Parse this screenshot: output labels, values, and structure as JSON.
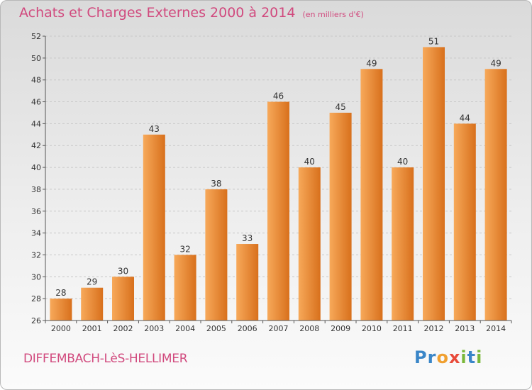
{
  "title": "Achats et Charges Externes 2000 à 2014",
  "unit": "(en milliers d'€)",
  "commune": "DIFFEMBACH-LèS-HELLIMER",
  "logo": {
    "text": "Proxiti",
    "letters": [
      {
        "ch": "P",
        "color": "#3a86c8"
      },
      {
        "ch": "r",
        "color": "#3a86c8"
      },
      {
        "ch": "o",
        "color": "#f0a030"
      },
      {
        "ch": "x",
        "color": "#e84a3a"
      },
      {
        "ch": "i",
        "color": "#7ab83a"
      },
      {
        "ch": "t",
        "color": "#3a86c8"
      },
      {
        "ch": "i",
        "color": "#7ab83a"
      }
    ]
  },
  "chart_data": {
    "type": "bar",
    "categories": [
      "2000",
      "2001",
      "2002",
      "2003",
      "2004",
      "2005",
      "2006",
      "2007",
      "2008",
      "2009",
      "2010",
      "2011",
      "2012",
      "2013",
      "2014"
    ],
    "values": [
      28,
      29,
      30,
      43,
      32,
      38,
      33,
      46,
      40,
      45,
      49,
      40,
      51,
      44,
      49
    ],
    "ylim": [
      26,
      52
    ],
    "yticks": [
      26,
      28,
      30,
      32,
      34,
      36,
      38,
      40,
      42,
      44,
      46,
      48,
      50,
      52
    ],
    "grid": true,
    "bar_color_light": "#f7a95a",
    "bar_color_dark": "#d8701c"
  }
}
